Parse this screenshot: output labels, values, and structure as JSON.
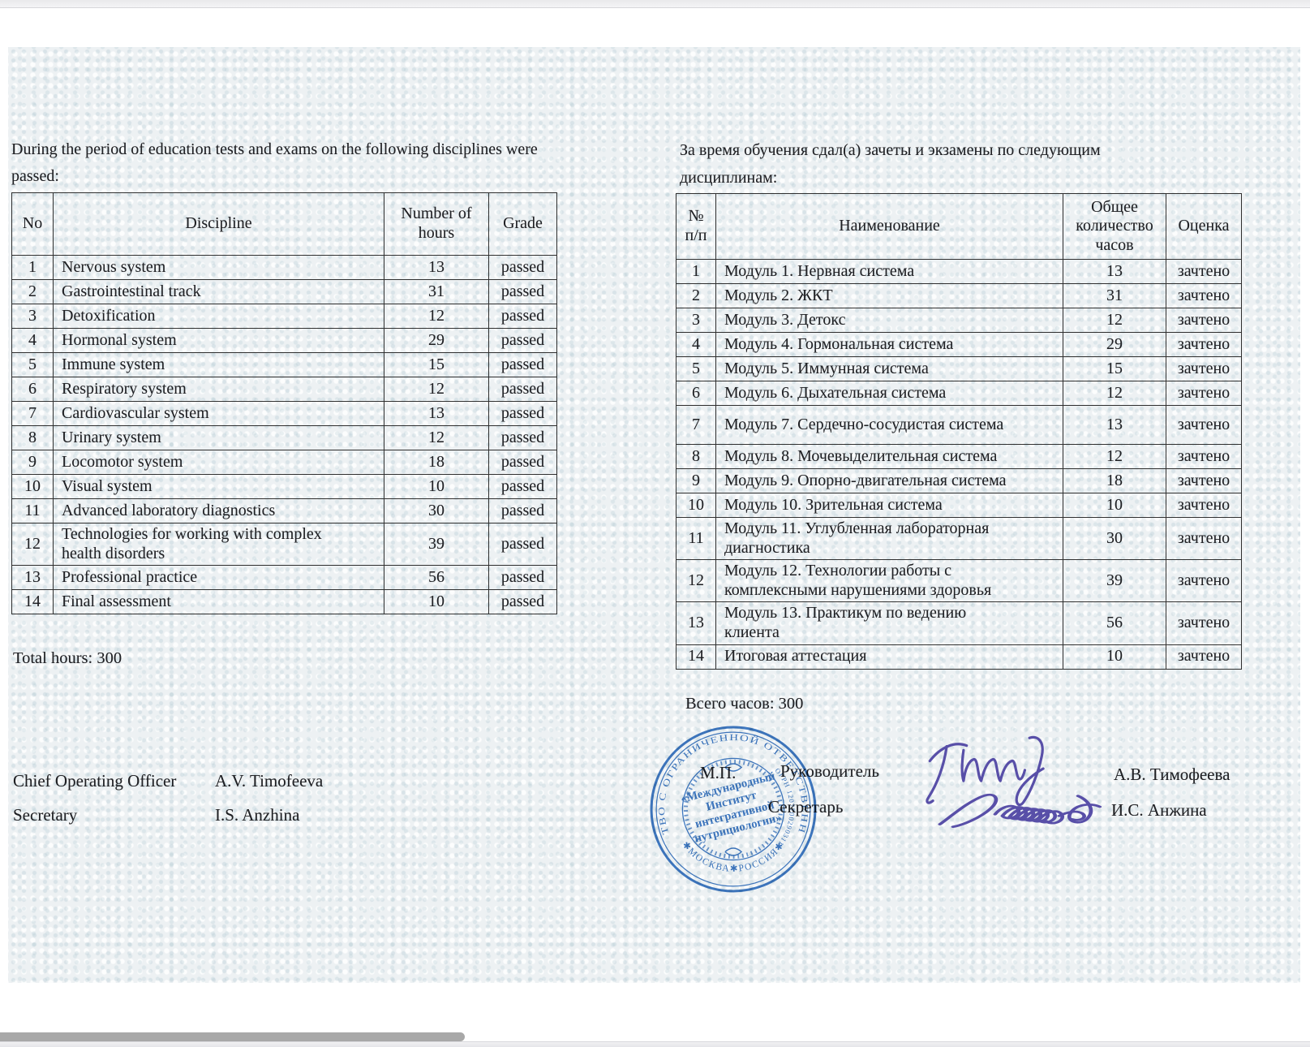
{
  "left": {
    "heading": "During the period of education tests and exams on the following disciplines were passed:",
    "table": {
      "headers": [
        "No",
        "Discipline",
        "Number of hours",
        "Grade"
      ],
      "rows": [
        [
          "1",
          "Nervous system",
          "13",
          "passed"
        ],
        [
          "2",
          "Gastrointestinal track",
          "31",
          "passed"
        ],
        [
          "3",
          "Detoxification",
          "12",
          "passed"
        ],
        [
          "4",
          "Hormonal system",
          "29",
          "passed"
        ],
        [
          "5",
          "Immune system",
          "15",
          "passed"
        ],
        [
          "6",
          "Respiratory system",
          "12",
          "passed"
        ],
        [
          "7",
          "Cardiovascular system",
          "13",
          "passed"
        ],
        [
          "8",
          "Urinary system",
          "12",
          "passed"
        ],
        [
          "9",
          "Locomotor system",
          "18",
          "passed"
        ],
        [
          "10",
          "Visual system",
          "10",
          "passed"
        ],
        [
          "11",
          "Advanced laboratory diagnostics",
          "30",
          "passed"
        ],
        [
          "12",
          "Technologies for working with complex health disorders",
          "39",
          "passed"
        ],
        [
          "13",
          "Professional practice",
          "56",
          "passed"
        ],
        [
          "14",
          "Final assessment",
          "10",
          "passed"
        ]
      ]
    },
    "total": "Total hours: 300",
    "signature1_role": "Chief Operating Officer",
    "signature1_name": "A.V. Timofeeva",
    "signature2_role": "Secretary",
    "signature2_name": "I.S. Anzhina"
  },
  "right": {
    "heading": "За время обучения сдал(а) зачеты и экзамены по следующим дисциплинам:",
    "table": {
      "headers": [
        "№ п/п",
        "Наименование",
        "Общее количество часов",
        "Оценка"
      ],
      "rows": [
        [
          "1",
          "Модуль 1. Нервная система",
          "13",
          "зачтено"
        ],
        [
          "2",
          "Модуль 2. ЖКТ",
          "31",
          "зачтено"
        ],
        [
          "3",
          "Модуль 3. Детокс",
          "12",
          "зачтено"
        ],
        [
          "4",
          "Модуль 4. Гормональная система",
          "29",
          "зачтено"
        ],
        [
          "5",
          "Модуль 5. Иммунная система",
          "15",
          "зачтено"
        ],
        [
          "6",
          "Модуль 6. Дыхательная система",
          "12",
          "зачтено"
        ],
        [
          "7",
          "Модуль 7. Сердечно-сосудистая система",
          "13",
          "зачтено"
        ],
        [
          "8",
          "Модуль 8. Мочевыделительная система",
          "12",
          "зачтено"
        ],
        [
          "9",
          "Модуль 9. Опорно-двигательная система",
          "18",
          "зачтено"
        ],
        [
          "10",
          "Модуль 10. Зрительная система",
          "10",
          "зачтено"
        ],
        [
          "11",
          "Модуль 11. Углубленная лабораторная диагностика",
          "30",
          "зачтено"
        ],
        [
          "12",
          "Модуль 12. Технологии работы с комплексными нарушениями здоровья",
          "39",
          "зачтено"
        ],
        [
          "13",
          "Модуль 13. Практикум по ведению клиента",
          "56",
          "зачтено"
        ],
        [
          "14",
          "Итоговая аттестация",
          "10",
          "зачтено"
        ]
      ]
    },
    "total": "Всего часов: 300",
    "mp_label": "М.П.",
    "signature1_role": "Руководитель",
    "signature1_name": "А.В. Тимофеева",
    "signature2_role": "Секретарь",
    "signature2_name": "И.С. Анжина"
  },
  "stamp": {
    "ring_text_top": "ОБЩЕСТВО С ОГРАНИЧЕННОЙ ОТВЕТСТВЕННОСТЬЮ",
    "ring_text_bottom": "✱МОСКВА✱РОССИЯ✱",
    "ring_number": "ОГРН 1207700290311",
    "center_line1": "«Международный",
    "center_line2": "Институт",
    "center_line3": "интегративной",
    "center_line4": "нутрициологии»",
    "ink_color": "#2f6fbe"
  },
  "signature_ink_color": "#584fa8"
}
